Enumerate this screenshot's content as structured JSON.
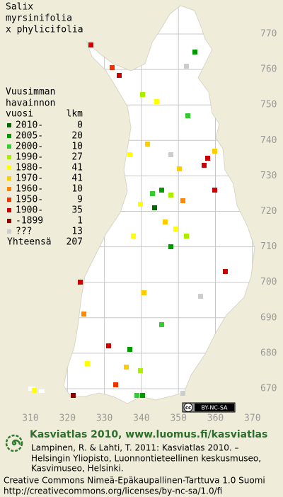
{
  "title": {
    "lines": [
      "Salix",
      "myrsinifolia",
      "x phylicifolia"
    ]
  },
  "legend": {
    "header": [
      "Vuusimman",
      "havainnon",
      "vuosi"
    ],
    "count_header": "lkm",
    "rows": [
      {
        "label": "2010-",
        "count": 0,
        "color": "#006600"
      },
      {
        "label": "2005-",
        "count": 20,
        "color": "#009900"
      },
      {
        "label": "2000-",
        "count": 10,
        "color": "#33cc33"
      },
      {
        "label": "1990-",
        "count": 27,
        "color": "#aaee00"
      },
      {
        "label": "1980-",
        "count": 41,
        "color": "#ffff00"
      },
      {
        "label": "1970-",
        "count": 41,
        "color": "#ffcc00"
      },
      {
        "label": "1960-",
        "count": 10,
        "color": "#ff8800"
      },
      {
        "label": "1950-",
        "count": 9,
        "color": "#ee3300"
      },
      {
        "label": "1900-",
        "count": 35,
        "color": "#cc0000"
      },
      {
        "label": "-1899",
        "count": 1,
        "color": "#880000"
      },
      {
        "label": "???",
        "count": 13,
        "color": "#cccccc"
      }
    ],
    "total": {
      "label": "Yhteensä",
      "count": 207
    }
  },
  "grid": {
    "y_labels": [
      770,
      760,
      750,
      740,
      730,
      720,
      710,
      700,
      690,
      680,
      670
    ],
    "x_labels": [
      310,
      320,
      330,
      340,
      350,
      360,
      370
    ]
  },
  "license_badge": {
    "symbol": "cc",
    "text": "BY-NC-SA"
  },
  "footer": {
    "site": "Kasviatlas 2010, www.luomus.fi/kasviatlas",
    "citation": [
      "Lampinen, R. & Lahti, T. 2011: Kasviatlas 2010. –",
      "Helsingin Yliopisto, Luonnontieteellinen keskusmuseo,",
      "Kasvimuseo, Helsinki."
    ],
    "license": [
      "Creative Commons Nimeä-Epäkaupallinen-Tarttuva 1.0 Suomi",
      "http://creativecommons.org/licenses/by-nc-sa/1.0/fi"
    ]
  }
}
